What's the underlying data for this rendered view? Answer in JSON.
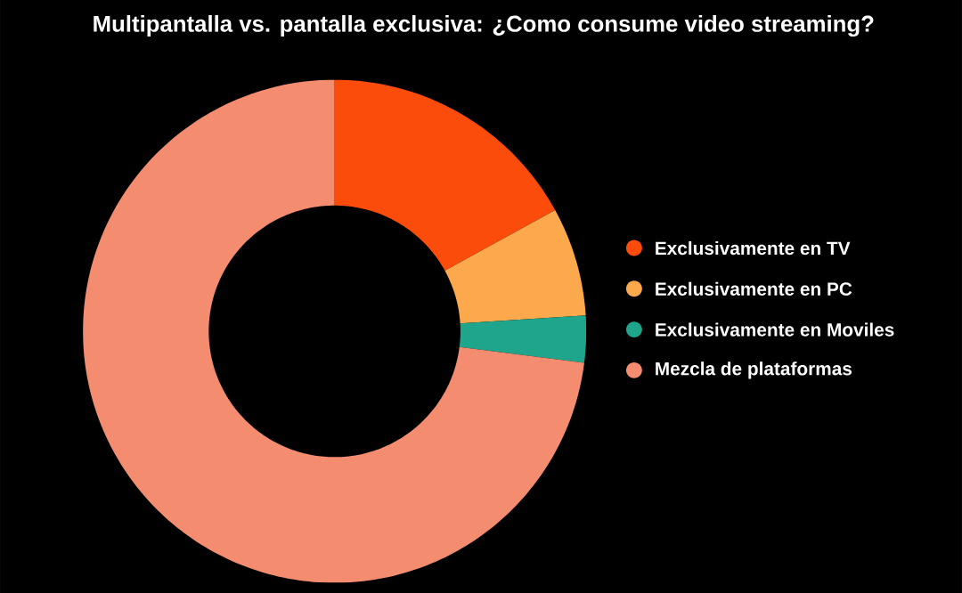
{
  "chart_data": {
    "type": "donut",
    "title": "Multipantalla vs. pantalla exclusiva: ¿Como consume video streaming?",
    "categories": [
      "Exclusivamente en TV",
      "Exclusivamente en PC",
      "Exclusivamente en Moviles",
      "Mezcla de plataformas"
    ],
    "values": [
      17,
      7,
      3,
      73
    ],
    "colors": [
      "#fc4c0c",
      "#fca84c",
      "#1fa58c",
      "#f48c70"
    ],
    "legend": "right"
  }
}
